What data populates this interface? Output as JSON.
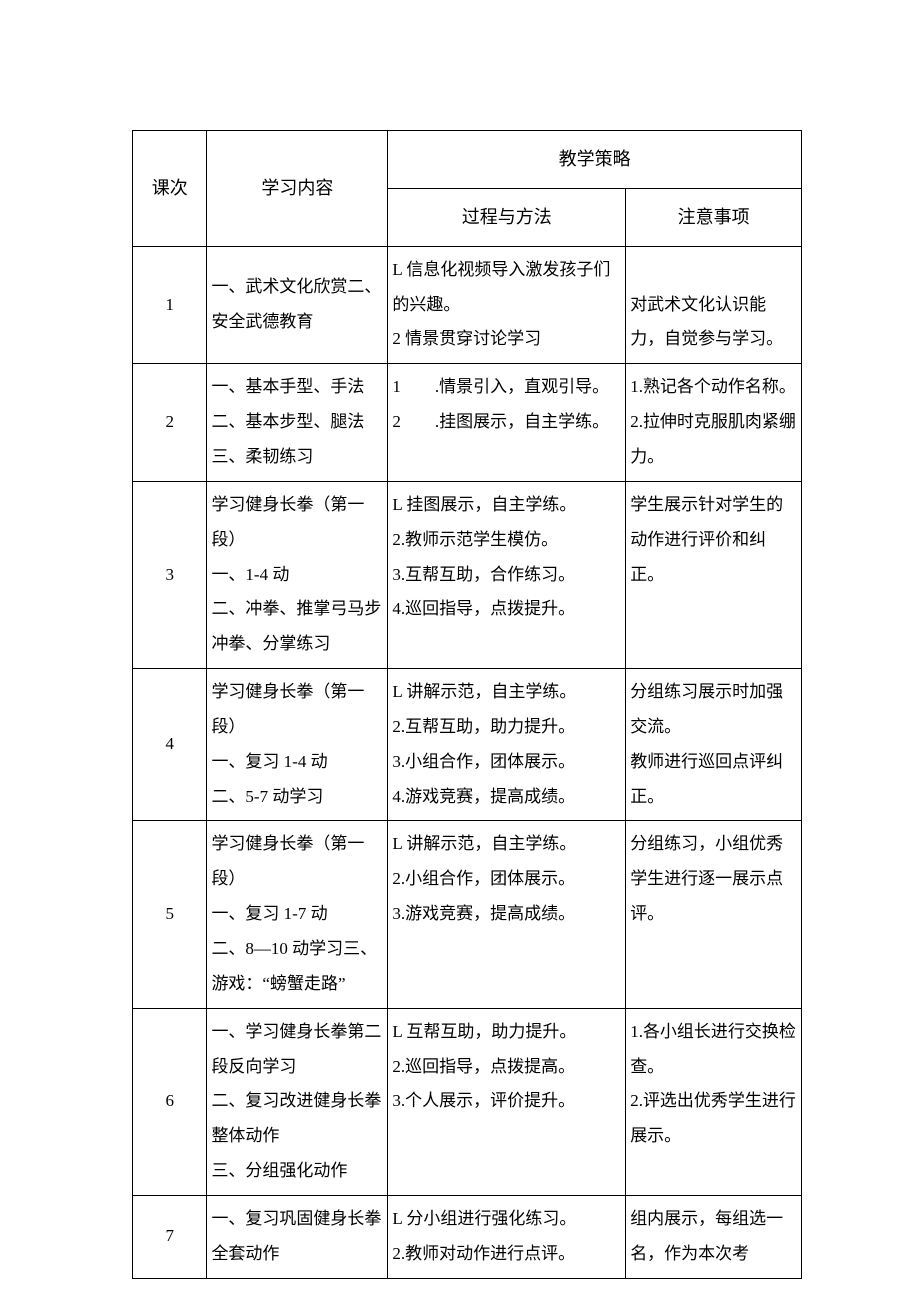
{
  "headers": {
    "lesson": "课次",
    "content": "学习内容",
    "strategy": "教学策略",
    "method": "过程与方法",
    "notes": "注意事项"
  },
  "rows": [
    {
      "num": "1",
      "content": "一、武术文化欣赏二、安全武德教育",
      "method": "L 信息化视频导入激发孩子们的兴趣。\n2 情景贯穿讨论学习",
      "notes": "对武术文化认识能力，自觉参与学习。"
    },
    {
      "num": "2",
      "content": "一、基本手型、手法二、基本步型、腿法三、柔韧练习",
      "method": "1　　.情景引入，直观引导。\n2　　.挂图展示，自主学练。",
      "notes": "1.熟记各个动作名称。2.拉伸时克服肌肉紧绷力。"
    },
    {
      "num": "3",
      "content": "学习健身长拳（第一段）\n一、1-4 动\n二、冲拳、推掌弓马步冲拳、分掌练习",
      "method": "L 挂图展示，自主学练。\n2.教师示范学生模仿。\n3.互帮互助，合作练习。\n4.巡回指导，点拨提升。",
      "notes": "学生展示针对学生的动作进行评价和纠正。"
    },
    {
      "num": "4",
      "content": "学习健身长拳（第一段）\n一、复习 1-4 动\n二、5-7 动学习",
      "method": "L 讲解示范，自主学练。\n2.互帮互助，助力提升。\n3.小组合作，团体展示。\n4.游戏竞赛，提高成绩。",
      "notes": "分组练习展示时加强交流。\n教师进行巡回点评纠正。"
    },
    {
      "num": "5",
      "content": "学习健身长拳（第一段）\n一、复习 1-7 动\n二、8—10 动学习三、游戏：“螃蟹走路”",
      "method": "L 讲解示范，自主学练。\n2.小组合作，团体展示。\n3.游戏竞赛，提高成绩。",
      "notes": "分组练习，小组优秀学生进行逐一展示点评。"
    },
    {
      "num": "6",
      "content": "一、学习健身长拳第二段反向学习\n二、复习改进健身长拳整体动作\n三、分组强化动作",
      "method": "L 互帮互助，助力提升。\n2.巡回指导，点拨提高。\n3.个人展示，评价提升。",
      "notes": "1.各小组长进行交换检查。\n2.评选出优秀学生进行展示。"
    },
    {
      "num": "7",
      "content": "一、复习巩固健身长拳全套动作",
      "method": "L 分小组进行强化练习。\n2.教师对动作进行点评。",
      "notes": "组内展示，每组选一名，作为本次考"
    }
  ]
}
